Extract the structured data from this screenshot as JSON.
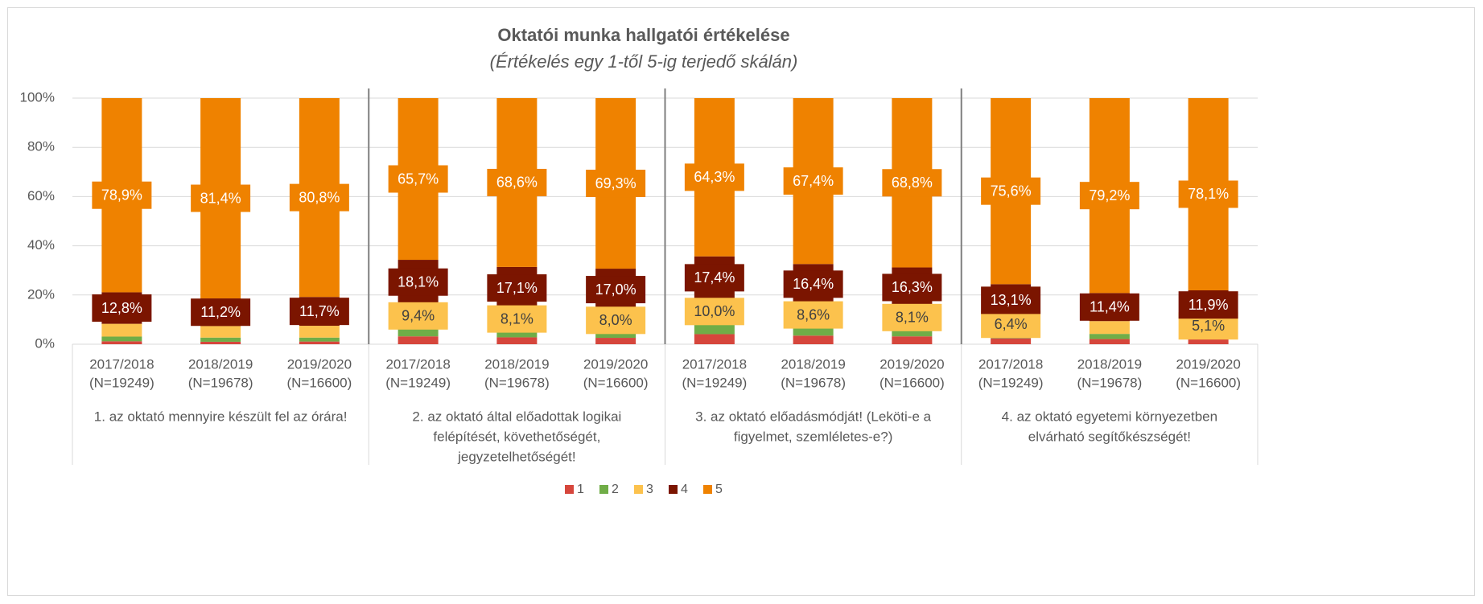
{
  "chart_data": {
    "type": "stacked_bar",
    "title": "Oktatói munka hallgatói értékelése",
    "subtitle": "(Értékelés egy 1-től 5-ig terjedő skálán)",
    "categories": [
      [
        "2017/2018",
        "(N=19249)"
      ],
      [
        "2018/2019",
        "(N=19678)"
      ],
      [
        "2019/2020",
        "(N=16600)"
      ],
      [
        "2017/2018",
        "(N=19249)"
      ],
      [
        "2018/2019",
        "(N=19678)"
      ],
      [
        "2019/2020",
        "(N=16600)"
      ],
      [
        "2017/2018",
        "(N=19249)"
      ],
      [
        "2018/2019",
        "(N=19678)"
      ],
      [
        "2019/2020",
        "(N=16600)"
      ],
      [
        "2017/2018",
        "(N=19249)"
      ],
      [
        "2018/2019",
        "(N=19678)"
      ],
      [
        "2019/2020",
        "(N=16600)"
      ]
    ],
    "groups": [
      [
        "1. az oktató mennyire készült fel az órára!"
      ],
      [
        "2.  az oktató által előadottak logikai",
        "felépítését, követhetőségét,",
        "jegyzetelhetőségét!"
      ],
      [
        "3. az oktató előadásmódját! (Leköti-e a",
        "figyelmet, szemléletes-e?)"
      ],
      [
        "4.   az oktató egyetemi környezetben",
        "elvárható segítőkészségét!"
      ]
    ],
    "series": [
      {
        "name": "1",
        "color": "#d6463c",
        "values": [
          1.2,
          1.0,
          1.1,
          3.2,
          2.8,
          2.6,
          4.1,
          3.5,
          3.2,
          2.4,
          2.1,
          2.4
        ]
      },
      {
        "name": "2",
        "color": "#70ad47",
        "values": [
          1.9,
          1.7,
          1.6,
          3.6,
          3.4,
          3.1,
          4.2,
          4.1,
          3.6,
          2.5,
          2.1,
          2.5
        ]
      },
      {
        "name": "3",
        "color": "#fcc24d",
        "values": [
          5.2,
          4.7,
          4.8,
          9.4,
          8.1,
          8.0,
          10.0,
          8.6,
          8.1,
          6.4,
          5.2,
          5.1
        ],
        "value_labels": [
          null,
          null,
          null,
          "9,4%",
          "8,1%",
          "8,0%",
          "10,0%",
          "8,6%",
          "8,1%",
          "6,4%",
          null,
          "5,1%"
        ]
      },
      {
        "name": "4",
        "color": "#7b1500",
        "values": [
          12.8,
          11.2,
          11.7,
          18.1,
          17.1,
          17.0,
          17.4,
          16.4,
          16.3,
          13.1,
          11.4,
          11.9
        ],
        "value_labels": [
          "12,8%",
          "11,2%",
          "11,7%",
          "18,1%",
          "17,1%",
          "17,0%",
          "17,4%",
          "16,4%",
          "16,3%",
          "13,1%",
          "11,4%",
          "11,9%"
        ]
      },
      {
        "name": "5",
        "color": "#ef8200",
        "values": [
          78.9,
          81.4,
          80.8,
          65.7,
          68.6,
          69.3,
          64.3,
          67.4,
          68.8,
          75.6,
          79.2,
          78.1
        ],
        "value_labels": [
          "78,9%",
          "81,4%",
          "80,8%",
          "65,7%",
          "68,6%",
          "69,3%",
          "64,3%",
          "67,4%",
          "68,8%",
          "75,6%",
          "79,2%",
          "78,1%"
        ]
      }
    ],
    "ylim": [
      0,
      100
    ],
    "yticks": [
      {
        "value": 0,
        "label": "0%"
      },
      {
        "value": 20,
        "label": "20%"
      },
      {
        "value": 40,
        "label": "40%"
      },
      {
        "value": 60,
        "label": "60%"
      },
      {
        "value": 80,
        "label": "80%"
      },
      {
        "value": 100,
        "label": "100%"
      }
    ],
    "grid": true,
    "legend": "bottom"
  }
}
